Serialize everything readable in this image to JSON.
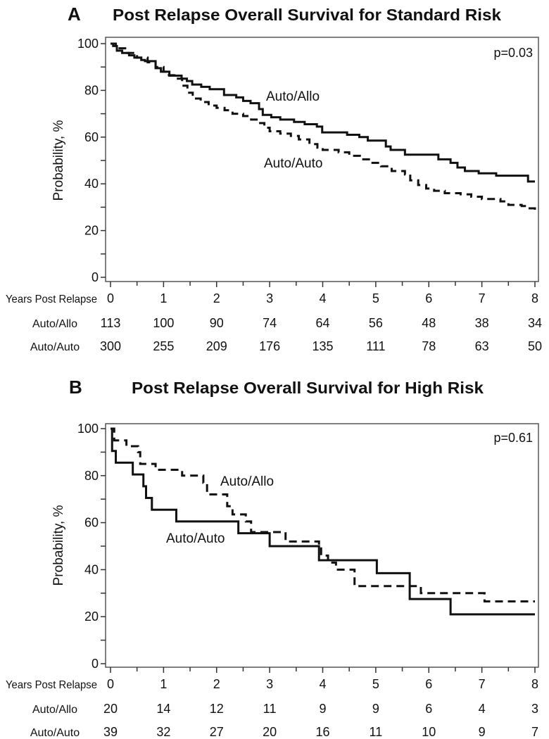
{
  "chart_data": [
    {
      "type": "line",
      "subtype": "kaplan-meier",
      "panel_letter": "A",
      "title": "Post Relapse Overall Survival for Standard Risk",
      "xlabel": "Years Post Relapse",
      "ylabel": "Probability, %",
      "xlim": [
        0,
        8
      ],
      "ylim": [
        0,
        100
      ],
      "x_ticks": [
        "0",
        "1",
        "2",
        "3",
        "4",
        "5",
        "6",
        "7",
        "8"
      ],
      "y_ticks": [
        "0",
        "20",
        "40",
        "60",
        "80",
        "100"
      ],
      "p_value": "p=0.03",
      "series": [
        {
          "name": "Auto/Allo",
          "style": "solid",
          "t": [
            0,
            0.05,
            0.12,
            0.22,
            0.35,
            0.45,
            0.58,
            0.65,
            0.85,
            0.95,
            1.11,
            1.34,
            1.44,
            1.54,
            1.71,
            1.87,
            2.14,
            2.37,
            2.5,
            2.64,
            2.8,
            2.87,
            3.03,
            3.2,
            3.46,
            3.66,
            3.89,
            3.99,
            4.46,
            4.69,
            4.85,
            5.19,
            5.28,
            5.55,
            6.18,
            6.41,
            6.54,
            6.68,
            6.94,
            7.27,
            7.87,
            8
          ],
          "s": [
            100,
            99,
            97,
            96,
            95,
            94,
            93,
            92.5,
            89.5,
            88,
            86.3,
            85,
            84,
            82.5,
            81.5,
            80.5,
            78,
            77,
            75.5,
            74.5,
            72,
            69.5,
            68.5,
            67.5,
            66.5,
            65.5,
            64.5,
            62,
            61,
            60,
            58.5,
            56,
            54.5,
            52.5,
            50.5,
            49,
            47,
            45.5,
            44.5,
            43.5,
            41,
            41
          ]
        },
        {
          "name": "Auto/Auto",
          "style": "dashed",
          "t": [
            0,
            0.1,
            0.3,
            0.5,
            0.7,
            0.85,
            1.0,
            1.1,
            1.2,
            1.35,
            1.45,
            1.55,
            1.7,
            1.85,
            2.0,
            2.15,
            2.3,
            2.5,
            2.65,
            2.8,
            2.9,
            3.0,
            3.2,
            3.4,
            3.55,
            3.75,
            3.9,
            4.0,
            4.3,
            4.5,
            4.7,
            4.9,
            5.1,
            5.3,
            5.55,
            5.65,
            5.8,
            5.95,
            6.1,
            6.3,
            6.6,
            6.8,
            7.0,
            7.35,
            7.5,
            7.75,
            7.9,
            8
          ],
          "s": [
            100,
            98,
            96,
            94,
            92,
            90,
            88,
            86.5,
            85,
            82,
            79,
            76.5,
            75,
            73.5,
            72.5,
            71.5,
            70,
            69,
            67.5,
            66,
            64,
            62.5,
            61.5,
            60.5,
            59,
            57,
            55.5,
            54.5,
            53.5,
            52,
            50.5,
            49,
            47.5,
            45.5,
            44,
            41.5,
            39.5,
            38,
            37,
            36,
            35.5,
            34.5,
            33.5,
            32.5,
            31,
            30.5,
            29.5,
            28.5
          ]
        }
      ],
      "at_risk": [
        {
          "label": "Auto/Allo",
          "values": [
            "113",
            "100",
            "90",
            "74",
            "64",
            "56",
            "48",
            "38",
            "34"
          ]
        },
        {
          "label": "Auto/Auto",
          "values": [
            "300",
            "255",
            "209",
            "176",
            "135",
            "111",
            "78",
            "63",
            "50"
          ]
        }
      ]
    },
    {
      "type": "line",
      "subtype": "kaplan-meier",
      "panel_letter": "B",
      "title": "Post Relapse Overall Survival for High Risk",
      "xlabel": "Years Post Relapse",
      "ylabel": "Probability, %",
      "xlim": [
        0,
        8
      ],
      "ylim": [
        0,
        100
      ],
      "x_ticks": [
        "0",
        "1",
        "2",
        "3",
        "4",
        "5",
        "6",
        "7",
        "8"
      ],
      "y_ticks": [
        "0",
        "20",
        "40",
        "60",
        "80",
        "100"
      ],
      "p_value": "p=0.61",
      "series": [
        {
          "name": "Auto/Auto",
          "style": "solid",
          "t": [
            0,
            0.03,
            0.1,
            0.42,
            0.62,
            0.67,
            0.78,
            1.24,
            2.41,
            3.0,
            3.93,
            5.02,
            5.64,
            6.41,
            8
          ],
          "s": [
            100,
            90.5,
            85.5,
            80.5,
            75.5,
            70.5,
            65.5,
            60.5,
            55.5,
            50,
            44,
            38.5,
            27.5,
            21,
            21
          ]
        },
        {
          "name": "Auto/Allo",
          "style": "dashed",
          "t": [
            0,
            0.07,
            0.3,
            0.52,
            0.56,
            0.85,
            1.35,
            1.75,
            1.82,
            2.2,
            2.3,
            2.55,
            2.65,
            3.3,
            3.93,
            3.97,
            4.1,
            4.25,
            4.6,
            5.85,
            7.05,
            8
          ],
          "s": [
            100,
            95,
            92.5,
            90,
            85,
            82.5,
            80,
            77,
            72,
            67,
            63.5,
            60.5,
            56,
            52,
            49.5,
            46,
            43,
            40,
            33,
            30,
            26.5,
            26.5
          ]
        }
      ],
      "at_risk": [
        {
          "label": "Auto/Allo",
          "values": [
            "20",
            "14",
            "12",
            "11",
            "9",
            "9",
            "6",
            "4",
            "3"
          ]
        },
        {
          "label": "Auto/Auto",
          "values": [
            "39",
            "32",
            "27",
            "20",
            "16",
            "11",
            "10",
            "9",
            "7"
          ]
        }
      ]
    }
  ]
}
